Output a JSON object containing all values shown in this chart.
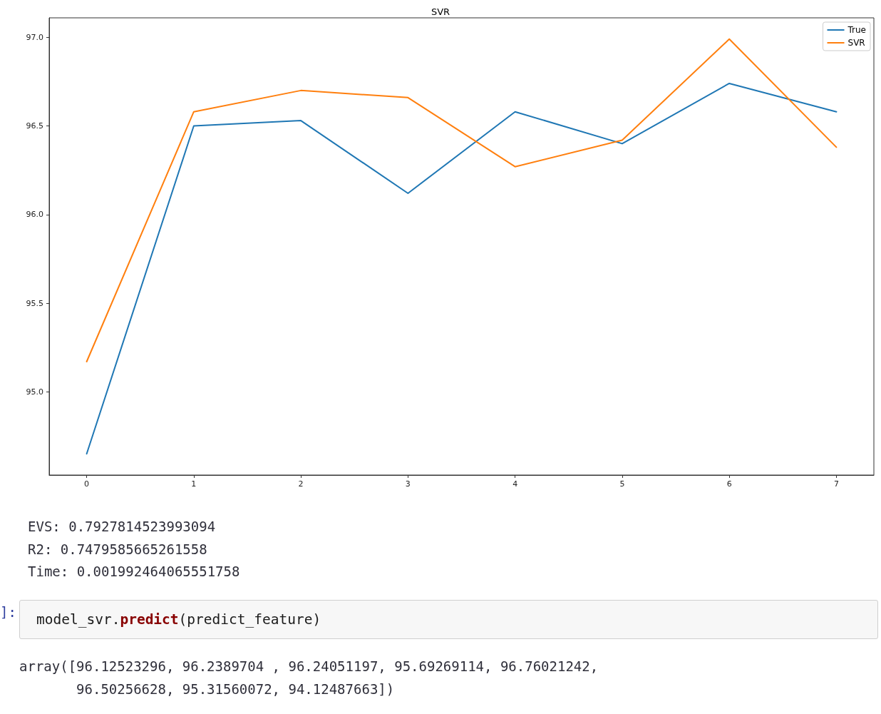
{
  "chart_data": {
    "type": "line",
    "title": "SVR",
    "x": [
      0,
      1,
      2,
      3,
      4,
      5,
      6,
      7
    ],
    "series": [
      {
        "name": "True",
        "color": "#1f77b4",
        "values": [
          94.65,
          96.5,
          96.53,
          96.12,
          96.58,
          96.4,
          96.74,
          96.58
        ]
      },
      {
        "name": "SVR",
        "color": "#ff7f0e",
        "values": [
          95.17,
          96.58,
          96.7,
          96.66,
          96.27,
          96.42,
          96.99,
          96.38
        ]
      }
    ],
    "xlim": [
      -0.35,
      7.35
    ],
    "xticks": [
      0,
      1,
      2,
      3,
      4,
      5,
      6,
      7
    ],
    "ylim": [
      94.53,
      97.11
    ],
    "yticks": [
      {
        "value": 95,
        "label": "95.0"
      },
      {
        "value": 95.5,
        "label": "95.5"
      },
      {
        "value": 96,
        "label": "96.0"
      },
      {
        "value": 96.5,
        "label": "96.5"
      },
      {
        "value": 97,
        "label": "97.0"
      }
    ],
    "legend": "top right",
    "marker": "none",
    "line_style": "solid",
    "annotations": [
      "EVS: 0.7927814523993094",
      "R2: 0.7479585665261558",
      "Time: 0.001992464065551758",
      "]:",
      "model_svr.predict(predict_feature)",
      "array([96.12523296, 96.2389704 , 96.24051197, 95.69269114, 96.76021242,\n       96.50256628, 95.31560072, 94.12487663])"
    ]
  }
}
